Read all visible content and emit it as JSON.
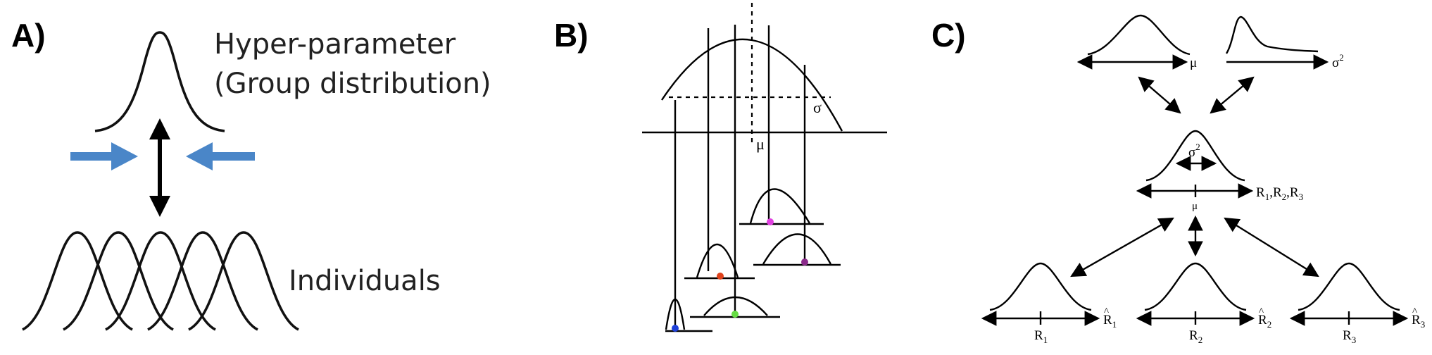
{
  "panel_a": {
    "letter": "A)",
    "title_line1": "Hyper-parameter",
    "title_line2": "(Group distribution)",
    "individuals_label": "Individuals",
    "arrow_color": "#4a86c8"
  },
  "panel_b": {
    "letter": "B)",
    "sigma_label": "σ",
    "mu_label": "μ",
    "dot_colors": [
      "#1e40d8",
      "#e0421c",
      "#66dd44",
      "#e040e0",
      "#8a2a8a"
    ]
  },
  "panel_c": {
    "letter": "C)",
    "mu_axis_label": "μ",
    "sigma2_axis_label": "σ",
    "sigma2_axis_sup": "2",
    "center_sigma_label": "σ",
    "center_sigma_sup": "2",
    "center_axis_label": "R",
    "center_axis_subs": [
      "1",
      "2",
      "3"
    ],
    "center_mu_label": "μ",
    "bottom": [
      {
        "tick_label": "R",
        "sub": "1",
        "end_label": "R",
        "end_sub": "1",
        "hat": "^"
      },
      {
        "tick_label": "R",
        "sub": "2",
        "end_label": "R",
        "end_sub": "2",
        "hat": "^"
      },
      {
        "tick_label": "R",
        "sub": "3",
        "end_label": "R",
        "end_sub": "3",
        "hat": "^"
      }
    ]
  }
}
